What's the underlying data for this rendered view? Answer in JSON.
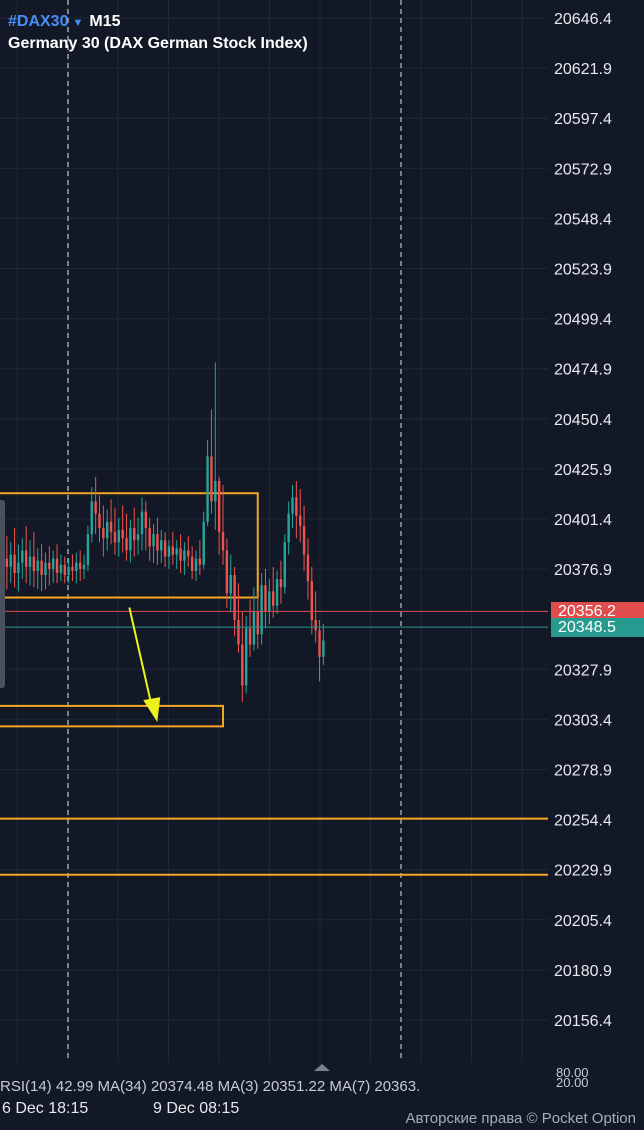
{
  "header": {
    "symbol": "#DAX30",
    "timeframe": "M15",
    "instrument_name": "Germany 30 (DAX German Stock Index)"
  },
  "price_badges": {
    "red": "20356.2",
    "teal": "20348.5"
  },
  "indicator_text": "RSI(14) 42.99 MA(34) 20374.48 MA(3) 20351.22 MA(7) 20363.",
  "indicator_values": [
    "80.00",
    "20.00"
  ],
  "copyright": "Авторские права © Pocket Option",
  "colors": {
    "background": "#121826",
    "bull": "#26a69a",
    "bear": "#ef5350",
    "zone": "#f5a623",
    "arrow": "#eef21b",
    "red_line": "#e14c4c",
    "teal_line": "#279a8f"
  },
  "chart_data": {
    "type": "candlestick",
    "y_ticks": [
      "20646.4",
      "20621.9",
      "20597.4",
      "20572.9",
      "20548.4",
      "20523.9",
      "20499.4",
      "20474.9",
      "20450.4",
      "20425.9",
      "20401.4",
      "20376.9",
      "20327.9",
      "20303.4",
      "20278.9",
      "20254.4",
      "20229.9",
      "20205.4",
      "20180.9",
      "20156.4"
    ],
    "ylim": [
      20145,
      20660
    ],
    "x_labels": [
      {
        "label": "6 Dec 18:15",
        "index": 2
      },
      {
        "label": "9 Dec 08:15",
        "index": 57
      }
    ],
    "candles": [
      {
        "o": 20375,
        "h": 20388,
        "c": 20382,
        "l": 20365
      },
      {
        "o": 20382,
        "h": 20393,
        "c": 20378,
        "l": 20367
      },
      {
        "o": 20378,
        "h": 20390,
        "c": 20384,
        "l": 20370
      },
      {
        "o": 20384,
        "h": 20397,
        "c": 20375,
        "l": 20368
      },
      {
        "o": 20375,
        "h": 20389,
        "c": 20380,
        "l": 20366
      },
      {
        "o": 20380,
        "h": 20392,
        "c": 20386,
        "l": 20372
      },
      {
        "o": 20386,
        "h": 20398,
        "c": 20378,
        "l": 20370
      },
      {
        "o": 20378,
        "h": 20391,
        "c": 20383,
        "l": 20369
      },
      {
        "o": 20383,
        "h": 20395,
        "c": 20376,
        "l": 20368
      },
      {
        "o": 20376,
        "h": 20387,
        "c": 20381,
        "l": 20367
      },
      {
        "o": 20381,
        "h": 20389,
        "c": 20374,
        "l": 20366
      },
      {
        "o": 20374,
        "h": 20385,
        "c": 20380,
        "l": 20367
      },
      {
        "o": 20380,
        "h": 20388,
        "c": 20377,
        "l": 20369
      },
      {
        "o": 20377,
        "h": 20386,
        "c": 20382,
        "l": 20370
      },
      {
        "o": 20382,
        "h": 20389,
        "c": 20375,
        "l": 20370
      },
      {
        "o": 20375,
        "h": 20384,
        "c": 20379,
        "l": 20371
      },
      {
        "o": 20379,
        "h": 20383,
        "c": 20374,
        "l": 20370
      },
      {
        "o": 20374,
        "h": 20382,
        "c": 20378,
        "l": 20370
      },
      {
        "o": 20378,
        "h": 20384,
        "c": 20376,
        "l": 20371
      },
      {
        "o": 20376,
        "h": 20385,
        "c": 20380,
        "l": 20370
      },
      {
        "o": 20380,
        "h": 20386,
        "c": 20377,
        "l": 20371
      },
      {
        "o": 20377,
        "h": 20384,
        "c": 20379,
        "l": 20372
      },
      {
        "o": 20379,
        "h": 20398,
        "c": 20394,
        "l": 20376
      },
      {
        "o": 20394,
        "h": 20417,
        "c": 20410,
        "l": 20390
      },
      {
        "o": 20410,
        "h": 20422,
        "c": 20404,
        "l": 20394
      },
      {
        "o": 20404,
        "h": 20413,
        "c": 20397,
        "l": 20390
      },
      {
        "o": 20397,
        "h": 20408,
        "c": 20392,
        "l": 20383
      },
      {
        "o": 20392,
        "h": 20406,
        "c": 20400,
        "l": 20386
      },
      {
        "o": 20400,
        "h": 20411,
        "c": 20395,
        "l": 20389
      },
      {
        "o": 20395,
        "h": 20407,
        "c": 20390,
        "l": 20384
      },
      {
        "o": 20390,
        "h": 20402,
        "c": 20396,
        "l": 20383
      },
      {
        "o": 20396,
        "h": 20408,
        "c": 20392,
        "l": 20385
      },
      {
        "o": 20392,
        "h": 20404,
        "c": 20386,
        "l": 20381
      },
      {
        "o": 20386,
        "h": 20401,
        "c": 20397,
        "l": 20380
      },
      {
        "o": 20397,
        "h": 20407,
        "c": 20391,
        "l": 20383
      },
      {
        "o": 20391,
        "h": 20402,
        "c": 20394,
        "l": 20384
      },
      {
        "o": 20394,
        "h": 20412,
        "c": 20405,
        "l": 20386
      },
      {
        "o": 20405,
        "h": 20410,
        "c": 20397,
        "l": 20386
      },
      {
        "o": 20397,
        "h": 20402,
        "c": 20388,
        "l": 20381
      },
      {
        "o": 20388,
        "h": 20399,
        "c": 20394,
        "l": 20380
      },
      {
        "o": 20394,
        "h": 20402,
        "c": 20386,
        "l": 20379
      },
      {
        "o": 20386,
        "h": 20396,
        "c": 20391,
        "l": 20380
      },
      {
        "o": 20391,
        "h": 20395,
        "c": 20383,
        "l": 20378
      },
      {
        "o": 20383,
        "h": 20391,
        "c": 20388,
        "l": 20377
      },
      {
        "o": 20388,
        "h": 20395,
        "c": 20384,
        "l": 20379
      },
      {
        "o": 20384,
        "h": 20391,
        "c": 20387,
        "l": 20377
      },
      {
        "o": 20387,
        "h": 20394,
        "c": 20381,
        "l": 20375
      },
      {
        "o": 20381,
        "h": 20390,
        "c": 20386,
        "l": 20374
      },
      {
        "o": 20386,
        "h": 20393,
        "c": 20383,
        "l": 20378
      },
      {
        "o": 20383,
        "h": 20388,
        "c": 20376,
        "l": 20372
      },
      {
        "o": 20376,
        "h": 20386,
        "c": 20382,
        "l": 20371
      },
      {
        "o": 20382,
        "h": 20391,
        "c": 20379,
        "l": 20374
      },
      {
        "o": 20379,
        "h": 20405,
        "c": 20400,
        "l": 20377
      },
      {
        "o": 20400,
        "h": 20440,
        "c": 20432,
        "l": 20398
      },
      {
        "o": 20432,
        "h": 20455,
        "c": 20410,
        "l": 20404
      },
      {
        "o": 20410,
        "h": 20478,
        "c": 20420,
        "l": 20396
      },
      {
        "o": 20420,
        "h": 20422,
        "c": 20395,
        "l": 20384
      },
      {
        "o": 20395,
        "h": 20418,
        "c": 20386,
        "l": 20379
      },
      {
        "o": 20386,
        "h": 20392,
        "c": 20365,
        "l": 20358
      },
      {
        "o": 20365,
        "h": 20384,
        "c": 20374,
        "l": 20356
      },
      {
        "o": 20374,
        "h": 20378,
        "c": 20352,
        "l": 20344
      },
      {
        "o": 20352,
        "h": 20370,
        "c": 20340,
        "l": 20336
      },
      {
        "o": 20340,
        "h": 20356,
        "c": 20320,
        "l": 20312
      },
      {
        "o": 20320,
        "h": 20354,
        "c": 20348,
        "l": 20316
      },
      {
        "o": 20348,
        "h": 20362,
        "c": 20340,
        "l": 20334
      },
      {
        "o": 20340,
        "h": 20368,
        "c": 20356,
        "l": 20337
      },
      {
        "o": 20356,
        "h": 20366,
        "c": 20345,
        "l": 20338
      },
      {
        "o": 20345,
        "h": 20375,
        "c": 20369,
        "l": 20340
      },
      {
        "o": 20369,
        "h": 20377,
        "c": 20356,
        "l": 20348
      },
      {
        "o": 20356,
        "h": 20372,
        "c": 20366,
        "l": 20350
      },
      {
        "o": 20366,
        "h": 20378,
        "c": 20359,
        "l": 20353
      },
      {
        "o": 20359,
        "h": 20376,
        "c": 20372,
        "l": 20355
      },
      {
        "o": 20372,
        "h": 20381,
        "c": 20368,
        "l": 20360
      },
      {
        "o": 20368,
        "h": 20394,
        "c": 20390,
        "l": 20365
      },
      {
        "o": 20390,
        "h": 20410,
        "c": 20404,
        "l": 20384
      },
      {
        "o": 20404,
        "h": 20418,
        "c": 20412,
        "l": 20397
      },
      {
        "o": 20412,
        "h": 20420,
        "c": 20403,
        "l": 20392
      },
      {
        "o": 20403,
        "h": 20416,
        "c": 20398,
        "l": 20390
      },
      {
        "o": 20398,
        "h": 20408,
        "c": 20384,
        "l": 20376
      },
      {
        "o": 20384,
        "h": 20392,
        "c": 20371,
        "l": 20362
      },
      {
        "o": 20371,
        "h": 20378,
        "c": 20352,
        "l": 20345
      },
      {
        "o": 20352,
        "h": 20366,
        "c": 20347,
        "l": 20341
      },
      {
        "o": 20347,
        "h": 20352,
        "c": 20334,
        "l": 20322
      },
      {
        "o": 20334,
        "h": 20350,
        "c": 20342,
        "l": 20330
      }
    ],
    "zones": [
      {
        "top": 20414,
        "bottom": 20363,
        "x_end_index": 66
      },
      {
        "top": 20310,
        "bottom": 20300,
        "x_end_index": 57
      }
    ],
    "levels": [
      20254.9,
      20227.4
    ],
    "current_lines": {
      "red": 20356.2,
      "teal": 20348.5
    },
    "arrow": {
      "from": {
        "index": 33,
        "price": 20363
      },
      "to": {
        "index": 41,
        "price": 20305
      }
    }
  }
}
